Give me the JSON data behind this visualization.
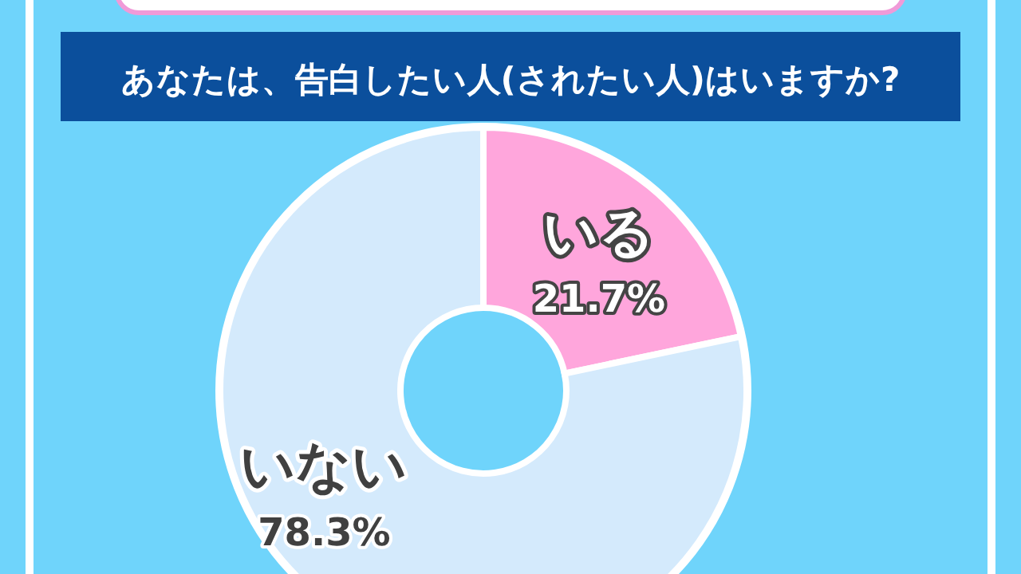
{
  "chart_data": {
    "type": "donut",
    "title": "あなたは、告白したい人(されたい人)はいますか?",
    "categories": [
      "いる",
      "いない"
    ],
    "values": [
      21.7,
      78.3
    ],
    "colors": [
      "#ffa6dc",
      "#d4eafc"
    ],
    "value_labels": [
      "21.7%",
      "78.3%"
    ]
  }
}
